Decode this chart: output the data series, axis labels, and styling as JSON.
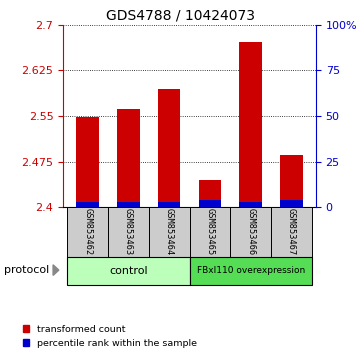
{
  "title": "GDS4788 / 10424073",
  "categories": [
    "GSM853462",
    "GSM853463",
    "GSM853464",
    "GSM853465",
    "GSM853466",
    "GSM853467"
  ],
  "transformed_count": [
    2.548,
    2.562,
    2.595,
    2.445,
    2.672,
    2.485
  ],
  "percentile_rank_pct": [
    3,
    3,
    3,
    4,
    3,
    4
  ],
  "ylim_left": [
    2.4,
    2.7
  ],
  "ylim_right": [
    0,
    100
  ],
  "yticks_left": [
    2.4,
    2.475,
    2.55,
    2.625,
    2.7
  ],
  "yticks_right": [
    0,
    25,
    50,
    75,
    100
  ],
  "ytick_labels_right": [
    "0",
    "25",
    "50",
    "75",
    "100%"
  ],
  "bar_base": 2.4,
  "red_color": "#cc0000",
  "blue_color": "#0000cc",
  "group_labels": [
    "control",
    "FBxl110 overexpression"
  ],
  "group_colors_ctrl": "#bbffbb",
  "group_colors_fbx": "#55dd55",
  "protocol_label": "protocol",
  "legend_red": "transformed count",
  "legend_blue": "percentile rank within the sample",
  "title_fontsize": 10,
  "axis_fontsize": 8,
  "label_fontsize": 7
}
